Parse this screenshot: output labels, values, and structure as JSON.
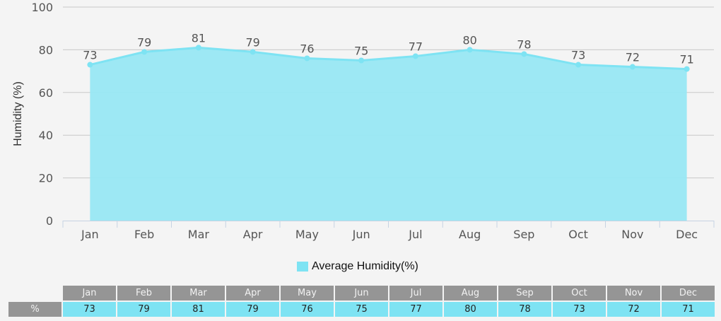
{
  "chart_data": {
    "type": "area",
    "title": "",
    "xlabel": "",
    "ylabel": "Humidity (%)",
    "ylim": [
      0,
      100
    ],
    "yticks": [
      0,
      20,
      40,
      60,
      80,
      100
    ],
    "grid": true,
    "legend_position": "bottom",
    "categories": [
      "Jan",
      "Feb",
      "Mar",
      "Apr",
      "May",
      "Jun",
      "Jul",
      "Aug",
      "Sep",
      "Oct",
      "Nov",
      "Dec"
    ],
    "series": [
      {
        "name": "Average Humidity(%)",
        "color": "#7ee3f3",
        "values": [
          73,
          79,
          81,
          79,
          76,
          75,
          77,
          80,
          78,
          73,
          72,
          71
        ]
      }
    ]
  },
  "legend": {
    "label": "Average Humidity(%)"
  },
  "table": {
    "row_label": "%",
    "headers": [
      "Jan",
      "Feb",
      "Mar",
      "Apr",
      "May",
      "Jun",
      "Jul",
      "Aug",
      "Sep",
      "Oct",
      "Nov",
      "Dec"
    ],
    "values": [
      "73",
      "79",
      "81",
      "79",
      "76",
      "75",
      "77",
      "80",
      "78",
      "73",
      "72",
      "71"
    ]
  },
  "colors": {
    "fill": "#98e7f3",
    "line": "#7ee3f3",
    "grid": "#c8c8c8",
    "text": "#555555",
    "table_header": "#959595"
  }
}
